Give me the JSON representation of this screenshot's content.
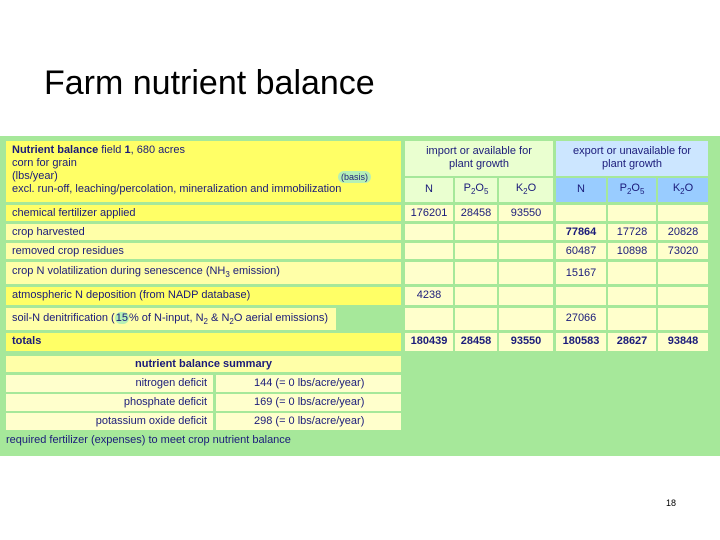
{
  "slide": {
    "title": "Farm nutrient balance",
    "page_number": "18"
  },
  "header": {
    "left_line1_bold": "Nutrient balance",
    "left_line1_rest": " field ",
    "field_no": "1",
    "acres": ", 680 acres",
    "left_line2": "corn for grain",
    "left_line3": "(lbs/year)",
    "left_line4": "excl. run-off, leaching/percolation, mineralization and immobilization",
    "import_line1": "import or available for",
    "import_line2": "plant growth",
    "export_line1": "export or unavailable for",
    "export_line2": "plant growth",
    "col_labels": [
      "N",
      "P2O5",
      "K2O"
    ]
  },
  "rows": [
    {
      "label": "chemical fertilizer applied",
      "import": [
        "176201",
        "28458",
        "93550"
      ],
      "export": [
        "",
        "",
        ""
      ]
    },
    {
      "label": "crop harvested",
      "import": [
        "",
        "",
        ""
      ],
      "export": [
        "77864",
        "17728",
        "20828"
      ]
    },
    {
      "label": "removed crop residues",
      "import": [
        "",
        "",
        ""
      ],
      "export": [
        "60487",
        "10898",
        "73020"
      ]
    },
    {
      "label_pre": "crop N volatilization during senescence (NH",
      "label_sub": "3",
      "label_post": " emission)",
      "import": [
        "",
        "",
        ""
      ],
      "export": [
        "15167",
        "",
        ""
      ]
    },
    {
      "label": "atmospheric N deposition (from NADP database)",
      "import": [
        "4238",
        "",
        ""
      ],
      "export": [
        "",
        "",
        ""
      ]
    },
    {
      "label_pre": "soil-N denitrification (",
      "pct": "15",
      "label_mid": "% of N-input, N",
      "sub1": "2",
      "label_mid2": " & N",
      "sub2": "2",
      "label_post": "O aerial emissions)",
      "basis": "(basis)",
      "import": [
        "",
        "",
        ""
      ],
      "export": [
        "27066",
        "",
        ""
      ]
    }
  ],
  "totals": {
    "label": "totals",
    "import": [
      "180439",
      "28458",
      "93550"
    ],
    "export": [
      "180583",
      "28627",
      "93848"
    ]
  },
  "summary": {
    "title": "nutrient balance summary",
    "items": [
      {
        "label": "nitrogen deficit",
        "value": "144 (= 0 lbs/acre/year)"
      },
      {
        "label": "phosphate deficit",
        "value": "169 (= 0 lbs/acre/year)"
      },
      {
        "label": "potassium oxide deficit",
        "value": "298 (= 0 lbs/acre/year)"
      }
    ],
    "footer": "required fertilizer (expenses) to meet crop nutrient balance"
  },
  "colors": {
    "sheet_bg": "#a6e89a",
    "yellow": "#ffff66",
    "blue": "#99ccff"
  }
}
